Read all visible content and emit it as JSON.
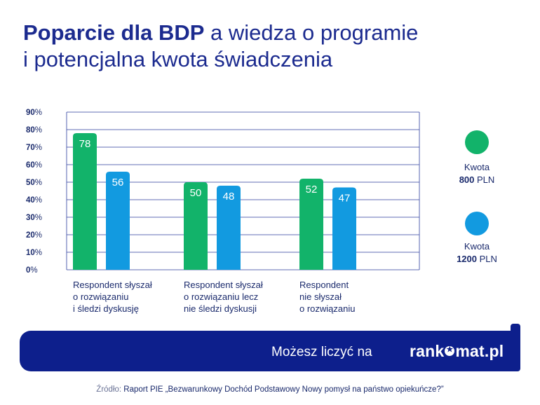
{
  "title": {
    "bold": "Poparcie dla BDP",
    "rest_line1": " a wiedza o programie",
    "line2": "i potencjalna kwota świadczenia"
  },
  "legend": [
    {
      "label": "Kwota",
      "value": "800",
      "unit": "PLN",
      "color": "#12b36a"
    },
    {
      "label": "Kwota",
      "value": "1200",
      "unit": "PLN",
      "color": "#129ae0"
    }
  ],
  "chart_data": {
    "type": "bar",
    "categories": [
      "Respondent słyszał o rozwiązaniu i śledzi dyskusję",
      "Respondent słyszał o rozwiązaniu lecz nie śledzi dyskusji",
      "Respondent nie słyszał o rozwiązaniu"
    ],
    "category_lines": [
      [
        "Respondent słyszał",
        "o rozwiązaniu",
        "i śledzi dyskusję"
      ],
      [
        "Respondent słyszał",
        "o rozwiązaniu lecz",
        "nie śledzi dyskusji"
      ],
      [
        "Respondent",
        "nie słyszał",
        "o rozwiązaniu"
      ]
    ],
    "series": [
      {
        "name": "Kwota 800 PLN",
        "values": [
          78,
          50,
          52
        ],
        "color": "#12b36a"
      },
      {
        "name": "Kwota 1200 PLN",
        "values": [
          56,
          48,
          47
        ],
        "color": "#129ae0"
      }
    ],
    "yticks": [
      {
        "num": "0",
        "pct": "%"
      },
      {
        "num": "10",
        "pct": "%"
      },
      {
        "num": "20",
        "pct": "%"
      },
      {
        "num": "30",
        "pct": "%"
      },
      {
        "num": "40",
        "pct": "%"
      },
      {
        "num": "50",
        "pct": "%"
      },
      {
        "num": "60",
        "pct": "%"
      },
      {
        "num": "70",
        "pct": "%"
      },
      {
        "num": "80",
        "pct": "%"
      },
      {
        "num": "90",
        "pct": "%"
      }
    ],
    "ylim": [
      0,
      90
    ],
    "grid": true
  },
  "banner": {
    "text": "Możesz liczyć na",
    "brand_before": "rank",
    "brand_after": "mat.pl"
  },
  "source": {
    "label": "Źródło:",
    "text": " Raport PIE „Bezwarunkowy Dochód Podstawowy Nowy pomysł na państwo opiekuńcze?”"
  }
}
